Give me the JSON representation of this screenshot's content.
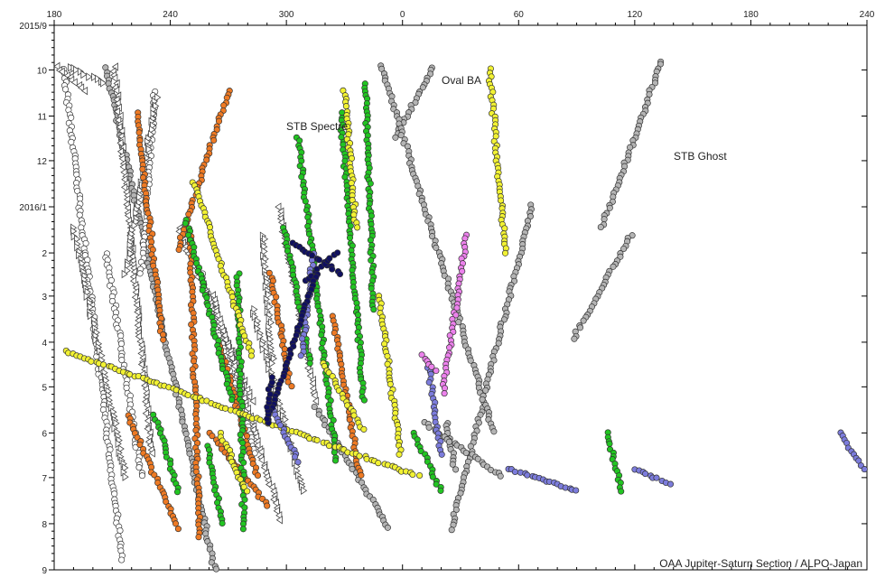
{
  "chart_data": {
    "type": "scatter",
    "title": "",
    "xlabel": "",
    "ylabel": "",
    "x_ticks_top": [
      "180",
      "240",
      "300",
      "0",
      "60",
      "120",
      "180",
      "240"
    ],
    "x_axis_note": "System II longitude, decreasing to the right (0-360 wrap), span 180 to 240 over 420 degrees",
    "x_range_unwrapped": [
      0,
      420
    ],
    "y_ticks": [
      "2015/9",
      "10",
      "11",
      "12",
      "2016/1",
      "2",
      "3",
      "4",
      "5",
      "6",
      "7",
      "8",
      "9"
    ],
    "y_range": [
      "2015-09-01",
      "2016-09-01"
    ],
    "grid": false,
    "legend": "none",
    "annotations": [
      "STB Spectre",
      "Oval BA",
      "STB Ghost"
    ],
    "credit": "OAA Jupiter-Saturn Section / ALPO-Japan",
    "colors": {
      "grey": "#b4b4b4",
      "white": "#ffffff",
      "orange": "#ee7a24",
      "green": "#22c522",
      "yellow": "#f2f233",
      "blue": "#7c7cdc",
      "navy": "#101060",
      "pink": "#ec82ec"
    },
    "series": [
      {
        "color": "grey",
        "marker": "circle",
        "segments": [
          [
            [
              196,
              "2015-09-29"
            ],
            [
              176,
              "2015-11-15"
            ]
          ],
          [
            [
              247,
              "2015-12-31"
            ],
            [
              205,
              "2016-08-05"
            ]
          ],
          [
            [
              203,
              "2016-05-25"
            ],
            [
              207,
              "2016-06-25"
            ]
          ],
          [
            [
              314,
              "2015-09-25"
            ],
            [
              283,
              "2016-01-15"
            ]
          ],
          [
            [
              298,
              "2016-01-20"
            ],
            [
              268,
              "2016-03-30"
            ]
          ],
          [
            [
              27,
              "2015-09-30"
            ],
            [
              83,
              "2016-09-01"
            ]
          ],
          [
            [
              135,
              "2016-05-15"
            ],
            [
              173,
              "2016-08-04"
            ]
          ],
          [
            [
              169,
              "2015-09-28"
            ],
            [
              227,
              "2016-05-31"
            ]
          ],
          [
            [
              191,
              "2016-05-25"
            ],
            [
              231,
              "2016-06-30"
            ]
          ]
        ]
      },
      {
        "color": "white",
        "marker": "circle",
        "segments": [
          [
            [
              5,
              "2015-10-01"
            ],
            [
              35,
              "2016-08-25"
            ]
          ],
          [
            [
              52,
              "2015-10-15"
            ],
            [
              45,
              "2016-02-15"
            ]
          ],
          [
            [
              27,
              "2016-02-01"
            ],
            [
              45,
              "2016-06-30"
            ]
          ],
          [
            [
              76,
              "2016-02-15"
            ],
            [
              104,
              "2016-06-15"
            ]
          ]
        ]
      },
      {
        "color": "white",
        "marker": "triangle-left",
        "segments": [
          [
            [
              1,
              "2015-09-29"
            ],
            [
              16,
              "2015-10-15"
            ]
          ],
          [
            [
              31,
              "2015-09-29"
            ],
            [
              50,
              "2016-06-15"
            ]
          ],
          [
            [
              64,
              "2016-01-15"
            ],
            [
              102,
              "2016-05-10"
            ]
          ],
          [
            [
              82,
              "2016-03-01"
            ],
            [
              117,
              "2016-07-29"
            ]
          ],
          [
            [
              116,
              "2016-01-01"
            ],
            [
              135,
              "2016-05-10"
            ]
          ]
        ]
      },
      {
        "color": "white",
        "marker": "triangle-right",
        "segments": [
          [
            [
              8,
              "2015-09-29"
            ],
            [
              26,
              "2015-10-10"
            ]
          ],
          [
            [
              53,
              "2015-10-20"
            ],
            [
              37,
              "2016-02-15"
            ]
          ],
          [
            [
              103,
              "2016-03-10"
            ],
            [
              129,
              "2016-07-10"
            ]
          ],
          [
            [
              108,
              "2016-01-20"
            ],
            [
              113,
              "2016-04-15"
            ]
          ],
          [
            [
              10,
              "2016-01-15"
            ],
            [
              37,
              "2016-06-30"
            ]
          ]
        ]
      },
      {
        "color": "orange",
        "marker": "circle",
        "segments": [
          [
            [
              90,
              "2015-10-15"
            ],
            [
              64,
              "2016-01-30"
            ]
          ],
          [
            [
              43,
              "2015-10-30"
            ],
            [
              56,
              "2016-03-30"
            ]
          ],
          [
            [
              70,
              "2016-01-15"
            ],
            [
              75,
              "2016-08-10"
            ]
          ],
          [
            [
              85,
              "2016-04-01"
            ],
            [
              105,
              "2016-06-30"
            ]
          ],
          [
            [
              81,
              "2016-06-01"
            ],
            [
              110,
              "2016-07-20"
            ]
          ],
          [
            [
              112,
              "2016-02-15"
            ],
            [
              122,
              "2016-04-30"
            ]
          ],
          [
            [
              38,
              "2016-05-20"
            ],
            [
              64,
              "2016-08-04"
            ]
          ],
          [
            [
              144,
              "2016-03-15"
            ],
            [
              158,
              "2016-06-30"
            ]
          ]
        ]
      },
      {
        "color": "green",
        "marker": "circle",
        "segments": [
          [
            [
              68,
              "2016-01-10"
            ],
            [
              92,
              "2016-05-10"
            ]
          ],
          [
            [
              95,
              "2016-02-15"
            ],
            [
              98,
              "2016-08-04"
            ]
          ],
          [
            [
              119,
              "2016-01-15"
            ],
            [
              132,
              "2016-04-15"
            ]
          ],
          [
            [
              126,
              "2015-11-15"
            ],
            [
              146,
              "2016-06-20"
            ]
          ],
          [
            [
              148,
              "2015-10-30"
            ],
            [
              160,
              "2016-05-10"
            ]
          ],
          [
            [
              161,
              "2015-10-10"
            ],
            [
              165,
              "2016-03-10"
            ]
          ],
          [
            [
              52,
              "2016-05-20"
            ],
            [
              64,
              "2016-07-10"
            ]
          ],
          [
            [
              79,
              "2016-06-10"
            ],
            [
              87,
              "2016-08-01"
            ]
          ],
          [
            [
              186,
              "2016-06-01"
            ],
            [
              200,
              "2016-07-10"
            ]
          ],
          [
            [
              286,
              "2016-06-01"
            ],
            [
              293,
              "2016-07-10"
            ]
          ]
        ]
      },
      {
        "color": "yellow",
        "marker": "circle",
        "segments": [
          [
            [
              72,
              "2015-12-15"
            ],
            [
              102,
              "2016-04-10"
            ]
          ],
          [
            [
              86,
              "2016-06-01"
            ],
            [
              99,
              "2016-07-10"
            ]
          ],
          [
            [
              139,
              "2016-04-15"
            ],
            [
              160,
              "2016-05-30"
            ]
          ],
          [
            [
              168,
              "2016-03-01"
            ],
            [
              179,
              "2016-06-15"
            ]
          ],
          [
            [
              150,
              "2015-10-15"
            ],
            [
              156,
              "2016-01-15"
            ]
          ],
          [
            [
              225,
              "2015-09-30"
            ],
            [
              233,
              "2016-02-01"
            ]
          ],
          [
            [
              6,
              "2016-04-07"
            ],
            [
              188,
              "2016-06-30"
            ]
          ]
        ]
      },
      {
        "color": "blue",
        "marker": "circle",
        "segments": [
          [
            [
              193,
              "2016-04-15"
            ],
            [
              200,
              "2016-06-15"
            ]
          ],
          [
            [
              111,
              "2016-05-10"
            ],
            [
              126,
              "2016-06-20"
            ]
          ],
          [
            [
              134,
              "2016-02-01"
            ],
            [
              128,
              "2016-04-10"
            ]
          ],
          [
            [
              235,
              "2016-06-25"
            ],
            [
              270,
              "2016-07-10"
            ]
          ],
          [
            [
              300,
              "2016-06-25"
            ],
            [
              318,
              "2016-07-05"
            ]
          ],
          [
            [
              406,
              "2016-06-01"
            ],
            [
              418,
              "2016-06-25"
            ]
          ]
        ]
      },
      {
        "color": "navy",
        "marker": "circle",
        "segments": [
          [
            [
              123,
              "2016-01-25"
            ],
            [
              148,
              "2016-02-15"
            ]
          ],
          [
            [
              130,
              "2016-02-20"
            ],
            [
              146,
              "2016-02-01"
            ]
          ],
          [
            [
              136,
              "2016-02-15"
            ],
            [
              125,
              "2016-03-25"
            ]
          ],
          [
            [
              126,
              "2016-03-25"
            ],
            [
              110,
              "2016-05-25"
            ]
          ],
          [
            [
              110,
              "2016-05-25"
            ],
            [
              112,
              "2016-04-25"
            ]
          ]
        ]
      },
      {
        "color": "pink",
        "marker": "circle",
        "segments": [
          [
            [
              213,
              "2016-01-20"
            ],
            [
              201,
              "2016-05-05"
            ]
          ],
          [
            [
              190,
              "2016-04-10"
            ],
            [
              197,
              "2016-04-20"
            ]
          ]
        ]
      }
    ]
  }
}
